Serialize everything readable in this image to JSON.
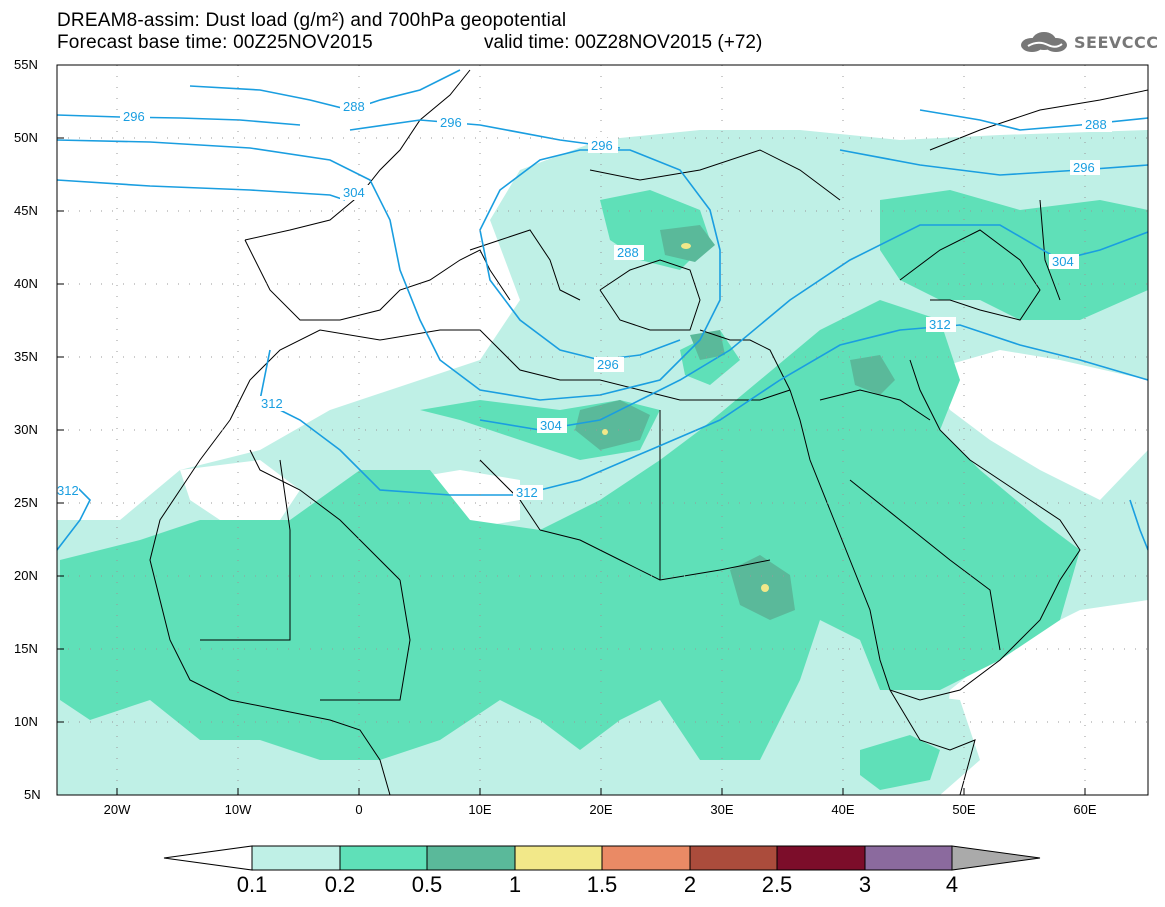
{
  "header": {
    "title_line1": "DREAM8-assim: Dust load (g/m²) and 700hPa geopotential",
    "title_line2": "Forecast base time: 00Z25NOV2015",
    "valid_time": "valid time: 00Z28NOV2015 (+72)",
    "logo_text": "SEEVCCC"
  },
  "map": {
    "lat_labels": [
      "55N",
      "50N",
      "45N",
      "40N",
      "35N",
      "30N",
      "25N",
      "20N",
      "15N",
      "10N",
      "5N"
    ],
    "lon_labels": [
      "20W",
      "10W",
      "0",
      "10E",
      "20E",
      "30E",
      "40E",
      "50E",
      "60E"
    ],
    "contour_labels": [
      "296",
      "288",
      "296",
      "304",
      "296",
      "288",
      "296",
      "288",
      "304",
      "312",
      "296",
      "304",
      "312",
      "312",
      "312"
    ]
  },
  "colorbar": {
    "colors": [
      "#bff0e6",
      "#5fe0b8",
      "#5ab99a",
      "#f2e889",
      "#ea8a65",
      "#ab4c3c",
      "#7c0d2a",
      "#8b6a9e"
    ],
    "end_left": "#ffffff",
    "end_right": "#aaaaaa",
    "labels": [
      "0.1",
      "0.2",
      "0.5",
      "1",
      "1.5",
      "2",
      "2.5",
      "3",
      "4"
    ]
  }
}
